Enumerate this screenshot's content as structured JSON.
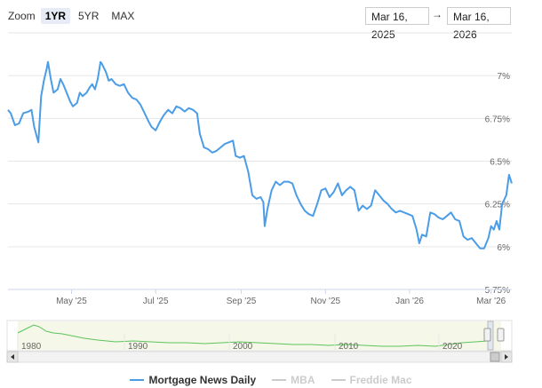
{
  "zoom": {
    "label": "Zoom",
    "options": [
      "1YR",
      "5YR",
      "MAX"
    ],
    "active": "1YR"
  },
  "range": {
    "from": "Mar 16, 2025",
    "arrow": "→",
    "to": "Mar 16, 2026"
  },
  "colors": {
    "series": "#4a9de6",
    "navigator": "#5cc35c",
    "grid": "#e6e6e6",
    "disabled": "#cccccc"
  },
  "legend": [
    {
      "name": "Mortgage News Daily",
      "color": "#4a9de6",
      "active": true
    },
    {
      "name": "MBA",
      "color": "#cccccc",
      "active": false
    },
    {
      "name": "Freddie Mac",
      "color": "#cccccc",
      "active": false
    }
  ],
  "chart_data": {
    "type": "line",
    "title": "",
    "xlabel": "",
    "ylabel": "",
    "grid": true,
    "legend_position": "bottom",
    "y_ticks": [
      "7%",
      "6.75%",
      "6.5%",
      "6.25%",
      "6%",
      "5.75%"
    ],
    "y_tick_values": [
      7,
      6.75,
      6.5,
      6.25,
      6,
      5.75
    ],
    "ylim": [
      5.75,
      7.25
    ],
    "x_ticks": [
      "May '25",
      "Jul '25",
      "Sep '25",
      "Nov '25",
      "Jan '26",
      "Mar '26"
    ],
    "x_tick_dates": [
      "2025-05-01",
      "2025-07-01",
      "2025-09-01",
      "2025-11-01",
      "2026-01-01",
      "2026-03-01"
    ],
    "xlim": [
      "2025-03-16",
      "2026-03-16"
    ],
    "series": [
      {
        "name": "Mortgage News Daily",
        "points": [
          [
            "2025-03-16",
            6.8
          ],
          [
            "2025-03-18",
            6.78
          ],
          [
            "2025-03-21",
            6.71
          ],
          [
            "2025-03-24",
            6.72
          ],
          [
            "2025-03-27",
            6.78
          ],
          [
            "2025-03-31",
            6.79
          ],
          [
            "2025-04-02",
            6.8
          ],
          [
            "2025-04-04",
            6.7
          ],
          [
            "2025-04-06",
            6.64
          ],
          [
            "2025-04-07",
            6.61
          ],
          [
            "2025-04-09",
            6.88
          ],
          [
            "2025-04-11",
            6.97
          ],
          [
            "2025-04-13",
            7.04
          ],
          [
            "2025-04-14",
            7.08
          ],
          [
            "2025-04-16",
            6.98
          ],
          [
            "2025-04-18",
            6.9
          ],
          [
            "2025-04-21",
            6.92
          ],
          [
            "2025-04-23",
            6.98
          ],
          [
            "2025-04-25",
            6.95
          ],
          [
            "2025-04-28",
            6.89
          ],
          [
            "2025-04-30",
            6.85
          ],
          [
            "2025-05-02",
            6.82
          ],
          [
            "2025-05-05",
            6.84
          ],
          [
            "2025-05-07",
            6.9
          ],
          [
            "2025-05-09",
            6.88
          ],
          [
            "2025-05-12",
            6.9
          ],
          [
            "2025-05-14",
            6.93
          ],
          [
            "2025-05-16",
            6.95
          ],
          [
            "2025-05-18",
            6.92
          ],
          [
            "2025-05-20",
            6.98
          ],
          [
            "2025-05-22",
            7.08
          ],
          [
            "2025-05-23",
            7.07
          ],
          [
            "2025-05-26",
            7.02
          ],
          [
            "2025-05-28",
            6.97
          ],
          [
            "2025-05-30",
            6.98
          ],
          [
            "2025-06-02",
            6.95
          ],
          [
            "2025-06-05",
            6.94
          ],
          [
            "2025-06-08",
            6.95
          ],
          [
            "2025-06-11",
            6.9
          ],
          [
            "2025-06-14",
            6.87
          ],
          [
            "2025-06-17",
            6.86
          ],
          [
            "2025-06-20",
            6.83
          ],
          [
            "2025-06-23",
            6.78
          ],
          [
            "2025-06-26",
            6.73
          ],
          [
            "2025-06-28",
            6.7
          ],
          [
            "2025-07-01",
            6.68
          ],
          [
            "2025-07-04",
            6.73
          ],
          [
            "2025-07-07",
            6.77
          ],
          [
            "2025-07-10",
            6.8
          ],
          [
            "2025-07-13",
            6.78
          ],
          [
            "2025-07-16",
            6.82
          ],
          [
            "2025-07-19",
            6.81
          ],
          [
            "2025-07-22",
            6.79
          ],
          [
            "2025-07-25",
            6.81
          ],
          [
            "2025-07-28",
            6.8
          ],
          [
            "2025-07-31",
            6.78
          ],
          [
            "2025-08-02",
            6.66
          ],
          [
            "2025-08-05",
            6.58
          ],
          [
            "2025-08-08",
            6.57
          ],
          [
            "2025-08-11",
            6.55
          ],
          [
            "2025-08-14",
            6.56
          ],
          [
            "2025-08-17",
            6.58
          ],
          [
            "2025-08-20",
            6.6
          ],
          [
            "2025-08-23",
            6.61
          ],
          [
            "2025-08-26",
            6.62
          ],
          [
            "2025-08-28",
            6.53
          ],
          [
            "2025-08-31",
            6.52
          ],
          [
            "2025-09-03",
            6.53
          ],
          [
            "2025-09-06",
            6.44
          ],
          [
            "2025-09-09",
            6.3
          ],
          [
            "2025-09-12",
            6.28
          ],
          [
            "2025-09-15",
            6.29
          ],
          [
            "2025-09-17",
            6.26
          ],
          [
            "2025-09-18",
            6.12
          ],
          [
            "2025-09-20",
            6.22
          ],
          [
            "2025-09-23",
            6.33
          ],
          [
            "2025-09-26",
            6.38
          ],
          [
            "2025-09-29",
            6.36
          ],
          [
            "2025-10-02",
            6.38
          ],
          [
            "2025-10-05",
            6.38
          ],
          [
            "2025-10-08",
            6.37
          ],
          [
            "2025-10-11",
            6.3
          ],
          [
            "2025-10-14",
            6.25
          ],
          [
            "2025-10-17",
            6.21
          ],
          [
            "2025-10-20",
            6.19
          ],
          [
            "2025-10-23",
            6.18
          ],
          [
            "2025-10-26",
            6.25
          ],
          [
            "2025-10-29",
            6.33
          ],
          [
            "2025-11-01",
            6.34
          ],
          [
            "2025-11-04",
            6.29
          ],
          [
            "2025-11-07",
            6.32
          ],
          [
            "2025-11-10",
            6.37
          ],
          [
            "2025-11-13",
            6.3
          ],
          [
            "2025-11-16",
            6.33
          ],
          [
            "2025-11-19",
            6.35
          ],
          [
            "2025-11-22",
            6.33
          ],
          [
            "2025-11-25",
            6.21
          ],
          [
            "2025-11-28",
            6.24
          ],
          [
            "2025-12-01",
            6.22
          ],
          [
            "2025-12-04",
            6.24
          ],
          [
            "2025-12-07",
            6.33
          ],
          [
            "2025-12-10",
            6.3
          ],
          [
            "2025-12-13",
            6.27
          ],
          [
            "2025-12-16",
            6.25
          ],
          [
            "2025-12-19",
            6.22
          ],
          [
            "2025-12-22",
            6.2
          ],
          [
            "2025-12-25",
            6.21
          ],
          [
            "2025-12-28",
            6.2
          ],
          [
            "2025-12-31",
            6.19
          ],
          [
            "2026-01-03",
            6.18
          ],
          [
            "2026-01-06",
            6.1
          ],
          [
            "2026-01-08",
            6.02
          ],
          [
            "2026-01-10",
            6.07
          ],
          [
            "2026-01-13",
            6.06
          ],
          [
            "2026-01-16",
            6.2
          ],
          [
            "2026-01-19",
            6.19
          ],
          [
            "2026-01-22",
            6.17
          ],
          [
            "2026-01-25",
            6.16
          ],
          [
            "2026-01-28",
            6.18
          ],
          [
            "2026-01-31",
            6.2
          ],
          [
            "2026-02-03",
            6.16
          ],
          [
            "2026-02-06",
            6.15
          ],
          [
            "2026-02-09",
            6.06
          ],
          [
            "2026-02-12",
            6.04
          ],
          [
            "2026-02-15",
            6.05
          ],
          [
            "2026-02-18",
            6.02
          ],
          [
            "2026-02-21",
            5.99
          ],
          [
            "2026-02-24",
            5.99
          ],
          [
            "2026-02-27",
            6.05
          ],
          [
            "2026-03-01",
            6.12
          ],
          [
            "2026-03-03",
            6.1
          ],
          [
            "2026-03-05",
            6.15
          ],
          [
            "2026-03-07",
            6.1
          ],
          [
            "2026-03-09",
            6.25
          ],
          [
            "2026-03-12",
            6.3
          ],
          [
            "2026-03-14",
            6.42
          ],
          [
            "2026-03-16",
            6.37
          ]
        ]
      }
    ],
    "navigator": {
      "x_ticks": [
        "1980",
        "1990",
        "2000",
        "2010",
        "2020"
      ]
    }
  }
}
